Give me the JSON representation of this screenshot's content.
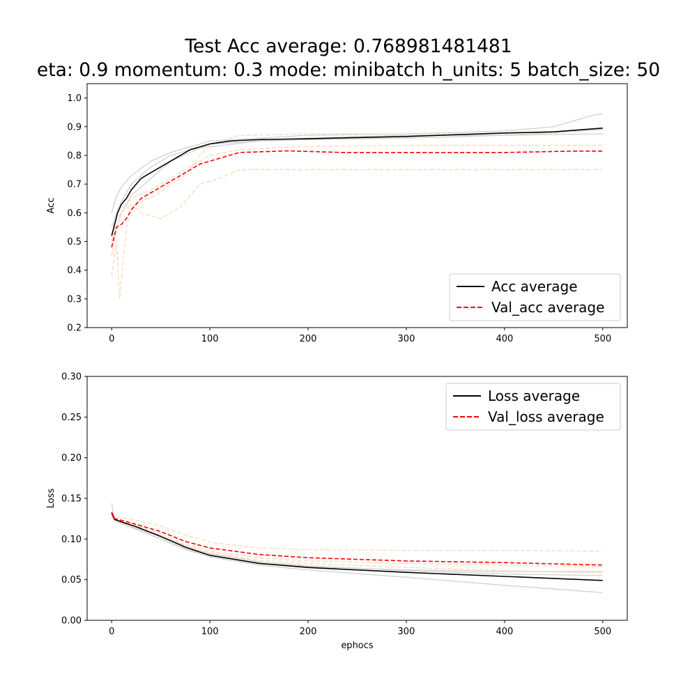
{
  "figure": {
    "title_line1": "Test Acc average: 0.768981481481",
    "title_line2": "eta: 0.9 momentum: 0.3 mode: minibatch h_units: 5 batch_size: 50"
  },
  "colors": {
    "train_avg": "#000000",
    "val_avg": "#ff0000",
    "train_runs": "#d3d3d3",
    "val_runs": "#ffdab9"
  },
  "chart_data": [
    {
      "type": "line",
      "title": "",
      "xlabel": "",
      "ylabel": "Acc",
      "xlim": [
        -25,
        525
      ],
      "ylim": [
        0.2,
        1.05
      ],
      "xticks": [
        0,
        100,
        200,
        300,
        400,
        500
      ],
      "yticks": [
        0.2,
        0.3,
        0.4,
        0.5,
        0.6,
        0.7,
        0.8,
        0.9,
        1.0
      ],
      "legend_position": "lower-right",
      "series": [
        {
          "name": "Acc average",
          "color": "#000000",
          "dash": "solid",
          "x": [
            0,
            3,
            6,
            10,
            15,
            20,
            25,
            30,
            40,
            50,
            60,
            70,
            80,
            90,
            100,
            110,
            120,
            130,
            150,
            180,
            200,
            250,
            300,
            350,
            400,
            450,
            480,
            500
          ],
          "y": [
            0.52,
            0.56,
            0.6,
            0.63,
            0.65,
            0.68,
            0.7,
            0.72,
            0.74,
            0.76,
            0.78,
            0.8,
            0.82,
            0.83,
            0.84,
            0.845,
            0.85,
            0.852,
            0.855,
            0.857,
            0.858,
            0.862,
            0.866,
            0.872,
            0.878,
            0.882,
            0.89,
            0.895
          ]
        },
        {
          "name": "Val_acc average",
          "color": "#ff0000",
          "dash": "dashed",
          "x": [
            0,
            5,
            10,
            15,
            20,
            25,
            30,
            40,
            50,
            60,
            70,
            80,
            90,
            100,
            110,
            120,
            130,
            180,
            235,
            300,
            400,
            470,
            500
          ],
          "y": [
            0.48,
            0.55,
            0.56,
            0.58,
            0.61,
            0.63,
            0.65,
            0.67,
            0.69,
            0.71,
            0.73,
            0.75,
            0.77,
            0.78,
            0.79,
            0.8,
            0.81,
            0.816,
            0.81,
            0.81,
            0.81,
            0.815,
            0.815
          ]
        },
        {
          "name": "",
          "color": "#d3d3d3",
          "dash": "solid",
          "x": [
            0,
            5,
            10,
            20,
            40,
            60,
            80,
            100,
            150,
            200,
            300,
            400,
            450,
            490,
            500
          ],
          "y": [
            0.6,
            0.66,
            0.69,
            0.73,
            0.78,
            0.81,
            0.83,
            0.85,
            0.86,
            0.87,
            0.875,
            0.885,
            0.9,
            0.94,
            0.945
          ]
        },
        {
          "name": "",
          "color": "#d3d3d3",
          "dash": "solid",
          "x": [
            0,
            5,
            10,
            20,
            40,
            60,
            80,
            100,
            150,
            200,
            300,
            400,
            500
          ],
          "y": [
            0.55,
            0.6,
            0.64,
            0.7,
            0.76,
            0.8,
            0.82,
            0.83,
            0.85,
            0.86,
            0.87,
            0.87,
            0.875
          ]
        },
        {
          "name": "",
          "color": "#d3d3d3",
          "dash": "solid",
          "x": [
            0,
            5,
            10,
            20,
            40,
            60,
            80,
            100,
            150,
            200,
            300,
            400,
            500
          ],
          "y": [
            0.5,
            0.55,
            0.6,
            0.66,
            0.72,
            0.78,
            0.81,
            0.84,
            0.85,
            0.855,
            0.86,
            0.87,
            0.89
          ]
        },
        {
          "name": "",
          "color": "#ffdab9",
          "dash": "dashed",
          "x": [
            0,
            5,
            8,
            15,
            20,
            30,
            45,
            60,
            70,
            80,
            90,
            100,
            130,
            200,
            300,
            400,
            500
          ],
          "y": [
            0.38,
            0.5,
            0.3,
            0.55,
            0.62,
            0.64,
            0.66,
            0.7,
            0.72,
            0.75,
            0.8,
            0.84,
            0.87,
            0.875,
            0.875,
            0.875,
            0.875
          ]
        },
        {
          "name": "",
          "color": "#ffdab9",
          "dash": "dashed",
          "x": [
            0,
            5,
            10,
            20,
            30,
            50,
            70,
            90,
            110,
            130,
            300,
            500
          ],
          "y": [
            0.45,
            0.55,
            0.6,
            0.63,
            0.6,
            0.58,
            0.62,
            0.7,
            0.72,
            0.75,
            0.75,
            0.75
          ]
        },
        {
          "name": "",
          "color": "#ffdab9",
          "dash": "dashed",
          "x": [
            0,
            5,
            10,
            20,
            40,
            60,
            80,
            100,
            130,
            190,
            300,
            500
          ],
          "y": [
            0.5,
            0.58,
            0.6,
            0.65,
            0.68,
            0.72,
            0.76,
            0.8,
            0.82,
            0.83,
            0.835,
            0.835
          ]
        }
      ]
    },
    {
      "type": "line",
      "title": "",
      "xlabel": "ephocs",
      "ylabel": "Loss",
      "xlim": [
        -25,
        525
      ],
      "ylim": [
        0.0,
        0.3
      ],
      "xticks": [
        0,
        100,
        200,
        300,
        400,
        500
      ],
      "yticks": [
        0.0,
        0.05,
        0.1,
        0.15,
        0.2,
        0.25,
        0.3
      ],
      "legend_position": "top-right",
      "series": [
        {
          "name": "Loss average",
          "color": "#000000",
          "dash": "solid",
          "x": [
            0,
            3,
            10,
            25,
            50,
            75,
            100,
            150,
            200,
            300,
            400,
            500
          ],
          "y": [
            0.132,
            0.124,
            0.121,
            0.115,
            0.103,
            0.09,
            0.08,
            0.07,
            0.065,
            0.059,
            0.054,
            0.049
          ]
        },
        {
          "name": "Val_loss average",
          "color": "#ff0000",
          "dash": "dashed",
          "x": [
            0,
            3,
            10,
            25,
            50,
            75,
            100,
            150,
            200,
            300,
            400,
            500
          ],
          "y": [
            0.133,
            0.125,
            0.123,
            0.118,
            0.109,
            0.097,
            0.089,
            0.081,
            0.077,
            0.073,
            0.071,
            0.068
          ]
        },
        {
          "name": "",
          "color": "#d3d3d3",
          "dash": "solid",
          "x": [
            0,
            3,
            10,
            25,
            50,
            75,
            100,
            150,
            200,
            300,
            400,
            500
          ],
          "y": [
            0.144,
            0.123,
            0.12,
            0.113,
            0.1,
            0.087,
            0.078,
            0.068,
            0.062,
            0.053,
            0.043,
            0.034
          ]
        },
        {
          "name": "",
          "color": "#d3d3d3",
          "dash": "solid",
          "x": [
            0,
            3,
            10,
            25,
            50,
            75,
            100,
            150,
            200,
            300,
            400,
            500
          ],
          "y": [
            0.128,
            0.122,
            0.119,
            0.112,
            0.1,
            0.088,
            0.08,
            0.07,
            0.066,
            0.062,
            0.06,
            0.06
          ]
        },
        {
          "name": "",
          "color": "#d3d3d3",
          "dash": "solid",
          "x": [
            0,
            3,
            10,
            25,
            50,
            75,
            100,
            150,
            200,
            300,
            400,
            500
          ],
          "y": [
            0.13,
            0.124,
            0.121,
            0.115,
            0.104,
            0.092,
            0.082,
            0.072,
            0.067,
            0.061,
            0.057,
            0.055
          ]
        },
        {
          "name": "",
          "color": "#ffdab9",
          "dash": "dashed",
          "x": [
            0,
            3,
            10,
            25,
            50,
            75,
            100,
            150,
            200,
            300,
            400,
            500
          ],
          "y": [
            0.131,
            0.127,
            0.126,
            0.123,
            0.116,
            0.105,
            0.096,
            0.089,
            0.087,
            0.086,
            0.086,
            0.085
          ]
        },
        {
          "name": "",
          "color": "#ffdab9",
          "dash": "dashed",
          "x": [
            0,
            3,
            10,
            25,
            50,
            75,
            100,
            150,
            200,
            300,
            400,
            500
          ],
          "y": [
            0.13,
            0.124,
            0.122,
            0.117,
            0.106,
            0.094,
            0.085,
            0.077,
            0.073,
            0.07,
            0.068,
            0.066
          ]
        },
        {
          "name": "",
          "color": "#ffdab9",
          "dash": "dashed",
          "x": [
            0,
            3,
            10,
            25,
            50,
            75,
            100,
            150,
            200,
            300,
            400,
            500
          ],
          "y": [
            0.129,
            0.122,
            0.12,
            0.114,
            0.103,
            0.091,
            0.083,
            0.074,
            0.07,
            0.065,
            0.061,
            0.058
          ]
        }
      ]
    }
  ]
}
